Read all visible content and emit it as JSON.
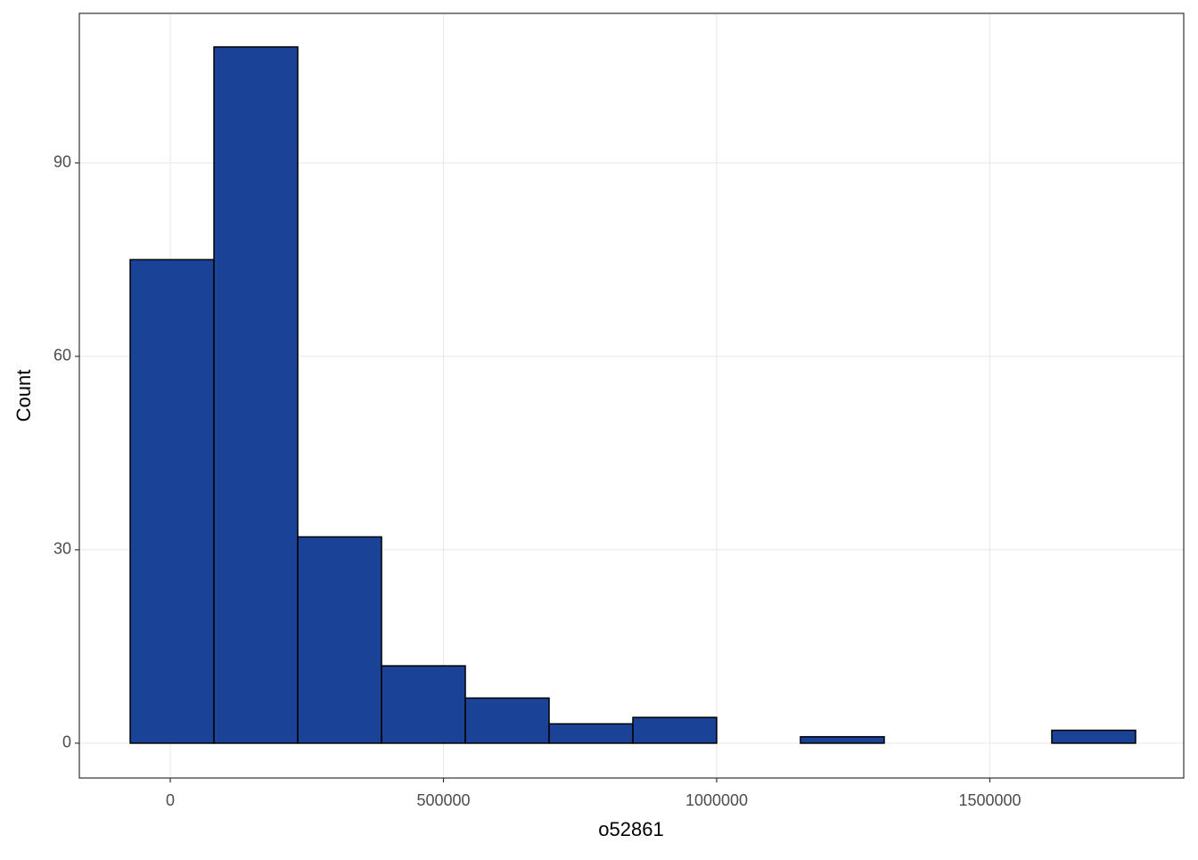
{
  "chart_data": {
    "type": "histogram",
    "x_label": "o52861",
    "y_label": "Count",
    "bins": [
      -73333,
      80000,
      233333,
      386667,
      540000,
      693333,
      846667,
      1000000,
      1153333,
      1306667,
      1460000,
      1613333,
      1766667
    ],
    "values": [
      75,
      108,
      32,
      12,
      7,
      3,
      4,
      0,
      1,
      0,
      0,
      2
    ],
    "color": "#1a4297",
    "xlim": [
      -166400,
      1854800
    ],
    "xticks": [
      0,
      500000,
      1000000,
      1500000
    ],
    "ylim": [
      -5.4,
      113.2
    ],
    "yticks": [
      0,
      30,
      60,
      90
    ],
    "grid": true
  }
}
